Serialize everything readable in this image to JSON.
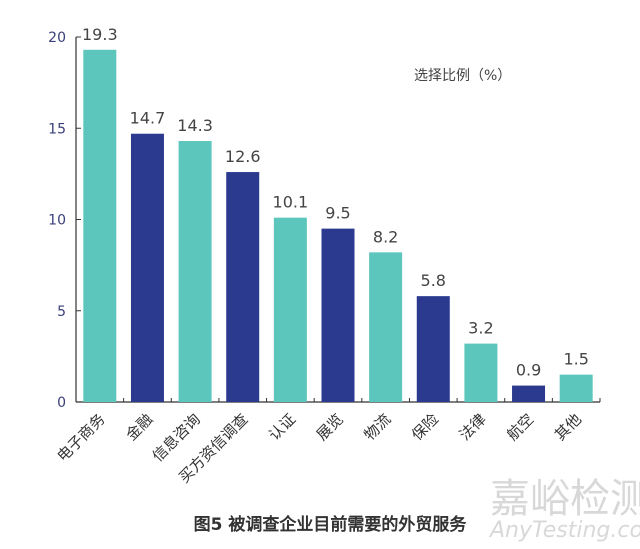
{
  "chart_data": {
    "type": "bar",
    "title": "图5  被调查企业目前需要的外贸服务",
    "legend_label": "选择比例（%）",
    "legend_placement": "top-right",
    "categories": [
      "电子商务",
      "金融",
      "信息咨询",
      "买方资信调查",
      "认证",
      "展览",
      "物流",
      "保险",
      "法律",
      "航空",
      "其他"
    ],
    "values": [
      19.3,
      14.7,
      14.3,
      12.6,
      10.1,
      9.5,
      8.2,
      5.8,
      3.2,
      0.9,
      1.5
    ],
    "ylim": [
      0,
      20
    ],
    "yticks": [
      0,
      5,
      10,
      15,
      20
    ],
    "grid": false,
    "colors": [
      "#5cc6bc",
      "#2b3a8e"
    ],
    "color_pattern": "alternating"
  },
  "watermark": {
    "cn": "嘉峪检测网",
    "en": "AnyTesting.com"
  }
}
